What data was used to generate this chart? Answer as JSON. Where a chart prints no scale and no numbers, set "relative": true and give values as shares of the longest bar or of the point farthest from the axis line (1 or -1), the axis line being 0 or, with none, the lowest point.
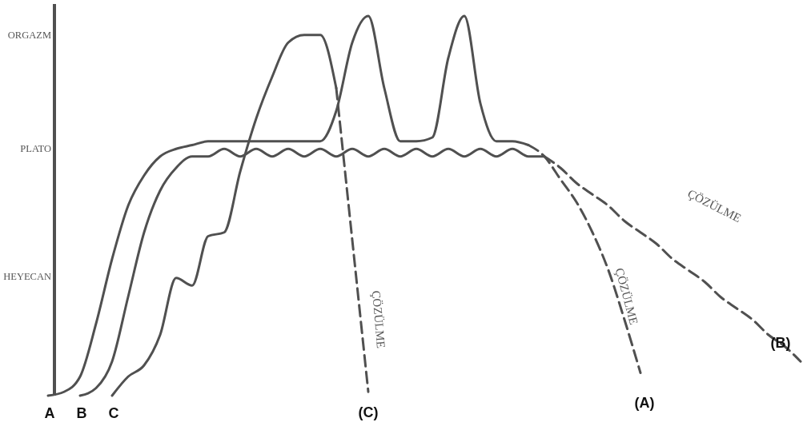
{
  "chart_data": {
    "type": "line",
    "relative": true,
    "legend": false,
    "grid": false,
    "categories": [
      null,
      null,
      null,
      null,
      null,
      null,
      null,
      null,
      null,
      null,
      null,
      null,
      null,
      null,
      null,
      null,
      null,
      null,
      null,
      null,
      null,
      null,
      null,
      null,
      null,
      null,
      null,
      null,
      null,
      null,
      null,
      null,
      null,
      null,
      null,
      null,
      null,
      null,
      null,
      null,
      null,
      null,
      null,
      null,
      null,
      null,
      null,
      null
    ],
    "series": [
      {
        "name": "A",
        "color": "#505050",
        "line_style": "solid",
        "values": [
          0,
          0.01,
          0.05,
          0.19,
          0.36,
          0.5,
          0.58,
          0.63,
          0.65,
          0.66,
          0.67,
          0.67,
          0.67,
          0.67,
          0.67,
          0.67,
          0.67,
          0.67,
          0.75,
          0.93,
          1,
          0.81,
          0.67,
          0.67,
          0.68,
          0.89,
          1,
          0.77,
          0.67,
          0.67,
          0.66,
          null,
          null,
          null,
          null,
          null,
          null,
          null,
          null,
          null,
          null,
          null,
          null,
          null,
          null,
          null,
          null,
          null
        ]
      },
      {
        "color": "#505050",
        "line_style": "dashed",
        "values": [
          null,
          null,
          null,
          null,
          null,
          null,
          null,
          null,
          null,
          null,
          null,
          null,
          null,
          null,
          null,
          null,
          null,
          null,
          null,
          null,
          null,
          null,
          null,
          null,
          null,
          null,
          null,
          null,
          null,
          null,
          0.66,
          0.63,
          0.57,
          0.51,
          0.43,
          0.33,
          0.2,
          0.06,
          null,
          null,
          null,
          null,
          null,
          null,
          null,
          null,
          null,
          null
        ]
      },
      {
        "name": "B",
        "color": "#505050",
        "line_style": "solid",
        "values": [
          null,
          null,
          0,
          0.02,
          0.09,
          0.26,
          0.43,
          0.54,
          0.6,
          0.63,
          0.63,
          0.65,
          0.63,
          0.65,
          0.63,
          0.65,
          0.63,
          0.65,
          0.63,
          0.65,
          0.63,
          0.65,
          0.63,
          0.65,
          0.63,
          0.65,
          0.63,
          0.65,
          0.63,
          0.65,
          0.63,
          0.63,
          null,
          null,
          null,
          null,
          null,
          null,
          null,
          null,
          null,
          null,
          null,
          null,
          null,
          null,
          null,
          null
        ]
      },
      {
        "color": "#505050",
        "line_style": "dashed",
        "values": [
          null,
          null,
          null,
          null,
          null,
          null,
          null,
          null,
          null,
          null,
          null,
          null,
          null,
          null,
          null,
          null,
          null,
          null,
          null,
          null,
          null,
          null,
          null,
          null,
          null,
          null,
          null,
          null,
          null,
          null,
          null,
          0.63,
          0.6,
          0.56,
          0.53,
          0.5,
          0.46,
          0.43,
          0.4,
          0.36,
          0.33,
          0.3,
          0.26,
          0.23,
          0.2,
          0.16,
          0.13,
          0.09
        ]
      },
      {
        "name": "C",
        "color": "#505050",
        "line_style": "solid",
        "values": [
          null,
          null,
          null,
          null,
          0,
          0.05,
          0.08,
          0.16,
          0.31,
          0.29,
          0.42,
          0.43,
          0.59,
          0.73,
          0.84,
          0.93,
          0.95,
          0.95,
          0.81,
          null,
          null,
          null,
          null,
          null,
          null,
          null,
          null,
          null,
          null,
          null,
          null,
          null,
          null,
          null,
          null,
          null,
          null,
          null,
          null,
          null,
          null,
          null,
          null,
          null,
          null,
          null,
          null,
          null
        ]
      },
      {
        "color": "#505050",
        "line_style": "dashed",
        "values": [
          null,
          null,
          null,
          null,
          null,
          null,
          null,
          null,
          null,
          null,
          null,
          null,
          null,
          null,
          null,
          null,
          null,
          null,
          0.81,
          0.41,
          0.01,
          null,
          null,
          null,
          null,
          null,
          null,
          null,
          null,
          null,
          null,
          null,
          null,
          null,
          null,
          null,
          null,
          null,
          null,
          null,
          null,
          null,
          null,
          null,
          null,
          null,
          null,
          null
        ]
      }
    ],
    "annotations": [
      "ORGAZM",
      "PLATO",
      "HEYECAN",
      "ÇÖZÜLME",
      "ÇÖZÜLME",
      "ÇÖZÜLME",
      "(C)",
      "(A)",
      "(B)"
    ]
  }
}
